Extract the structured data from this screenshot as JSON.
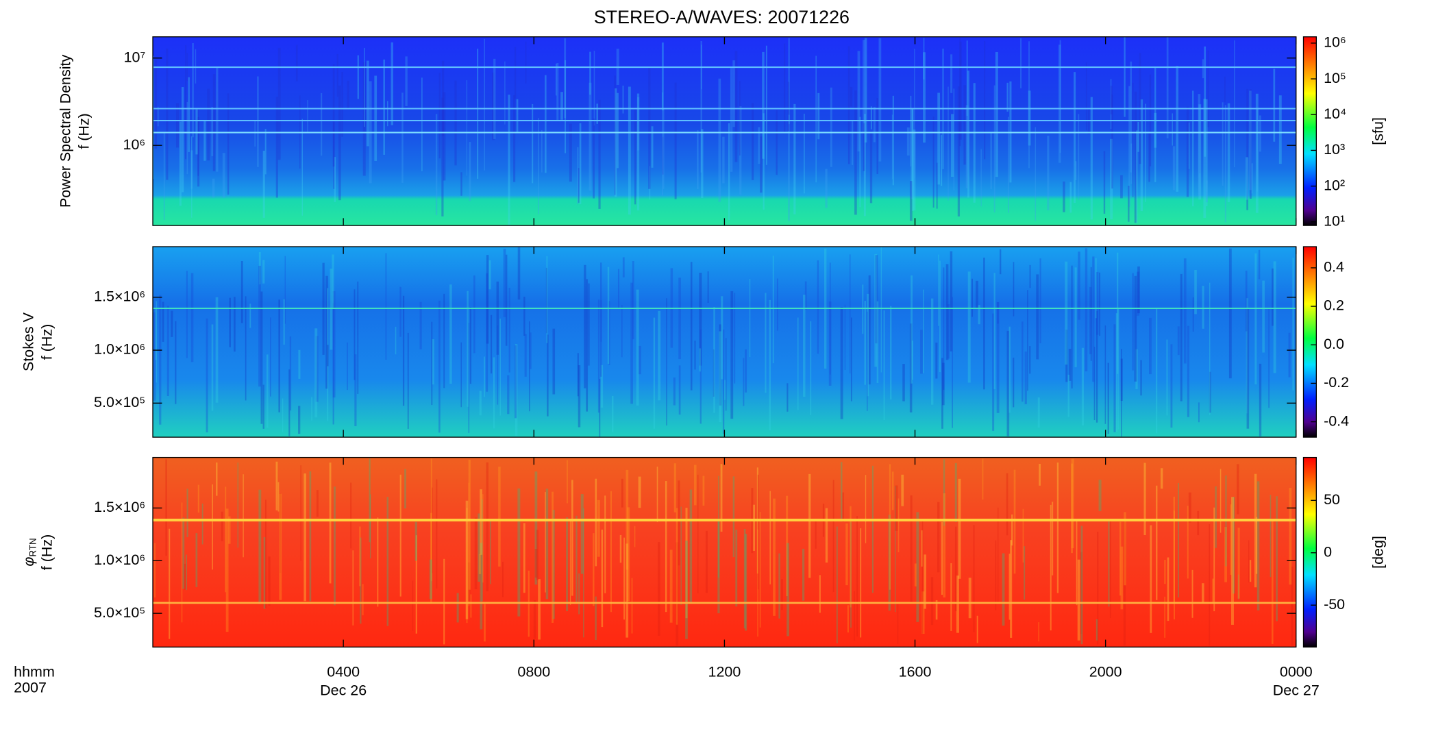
{
  "title": "STEREO-A/WAVES: 20071226",
  "x_axis": {
    "xlim": [
      0,
      24
    ],
    "xticks": [
      {
        "value": 4,
        "label": "0400"
      },
      {
        "value": 8,
        "label": "0800"
      },
      {
        "value": 12,
        "label": "1200"
      },
      {
        "value": 16,
        "label": "1600"
      },
      {
        "value": 20,
        "label": "2000"
      },
      {
        "value": 24,
        "label": "0000"
      }
    ],
    "label": [
      "hhmm",
      "2007"
    ],
    "date_labels": [
      {
        "value": 4,
        "label": "Dec 26"
      },
      {
        "value": 24,
        "label": "Dec 27"
      }
    ]
  },
  "chart_data": [
    {
      "type": "heatmap",
      "ylabel": [
        "Power Spectral Density",
        "f (Hz)"
      ],
      "log_y": true,
      "ylim": [
        121000,
        17500000
      ],
      "yticks": [
        {
          "value": 1000000,
          "label": "10⁶"
        },
        {
          "value": 10000000,
          "label": "10⁷"
        }
      ],
      "colorbar": {
        "log": true,
        "lim": [
          7.9,
          1500000
        ],
        "label": "[sfu]",
        "ticks": [
          {
            "value": 10,
            "label": "10¹"
          },
          {
            "value": 100,
            "label": "10²"
          },
          {
            "value": 1000,
            "label": "10³"
          },
          {
            "value": 10000,
            "label": "10⁴"
          },
          {
            "value": 100000,
            "label": "10⁵"
          },
          {
            "value": 1000000,
            "label": "10⁶"
          }
        ]
      }
    },
    {
      "type": "heatmap",
      "ylabel": [
        "Stokes V",
        "f (Hz)"
      ],
      "log_y": false,
      "ylim": [
        178000,
        1978000
      ],
      "yticks": [
        {
          "value": 500000,
          "label": "5.0×10⁵"
        },
        {
          "value": 1000000,
          "label": "1.0×10⁶"
        },
        {
          "value": 1500000,
          "label": "1.5×10⁶"
        }
      ],
      "colorbar": {
        "log": false,
        "lim": [
          -0.48,
          0.51
        ],
        "ticks": [
          -0.4,
          -0.2,
          {
            "value": 0,
            "label": "0.0"
          },
          0.2,
          0.4
        ]
      }
    },
    {
      "type": "heatmap",
      "ylabel_symbol": "φ",
      "ylabel_subscript": "RTN",
      "ylabel": [
        "f (Hz)"
      ],
      "log_y": false,
      "ylim": [
        180000,
        1980000
      ],
      "yticks": [
        {
          "value": 500000,
          "label": "5.0×10⁵"
        },
        {
          "value": 1000000,
          "label": "1.0×10⁶"
        },
        {
          "value": 1500000,
          "label": "1.5×10⁶"
        }
      ],
      "colorbar": {
        "log": false,
        "lim": [
          -90,
          91
        ],
        "label": "[deg]",
        "ticks": [
          -50,
          0,
          50
        ]
      }
    }
  ]
}
